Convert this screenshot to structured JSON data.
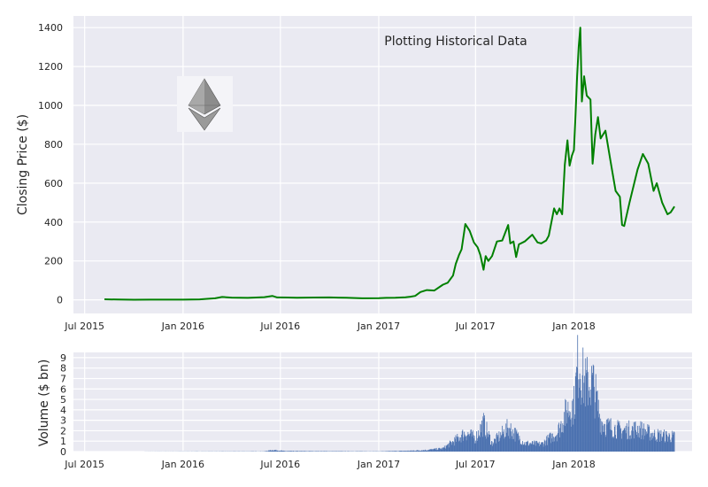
{
  "chart_data": [
    {
      "type": "line",
      "title": "",
      "annotation": "Plotting Historical Data",
      "xlabel": "",
      "ylabel": "Closing Price ($)",
      "x_ticks": [
        "Jul 2015",
        "Jan 2016",
        "Jul 2016",
        "Jan 2017",
        "Jul 2017",
        "Jan 2018"
      ],
      "y_ticks": [
        "0",
        "200",
        "400",
        "600",
        "800",
        "1000",
        "1200",
        "1400"
      ],
      "xlim": [
        "2015-06-10",
        "2018-08-10"
      ],
      "ylim": [
        -70,
        1460
      ],
      "grid": true,
      "logo": "ethereum-logo",
      "series": [
        {
          "color": "#008000",
          "points": [
            [
              "2015-08-07",
              2.8
            ],
            [
              "2015-09-01",
              1.4
            ],
            [
              "2015-10-01",
              0.7
            ],
            [
              "2015-11-01",
              0.9
            ],
            [
              "2015-12-01",
              0.9
            ],
            [
              "2016-01-01",
              1.0
            ],
            [
              "2016-02-01",
              2.5
            ],
            [
              "2016-02-15",
              5.2
            ],
            [
              "2016-03-01",
              8.0
            ],
            [
              "2016-03-14",
              14.5
            ],
            [
              "2016-04-01",
              11.5
            ],
            [
              "2016-05-01",
              10.0
            ],
            [
              "2016-06-01",
              14.0
            ],
            [
              "2016-06-16",
              20.0
            ],
            [
              "2016-06-25",
              12.5
            ],
            [
              "2016-07-15",
              12.0
            ],
            [
              "2016-08-01",
              10.5
            ],
            [
              "2016-09-01",
              12.0
            ],
            [
              "2016-10-01",
              12.5
            ],
            [
              "2016-11-01",
              10.5
            ],
            [
              "2016-12-01",
              8.0
            ],
            [
              "2017-01-01",
              8.2
            ],
            [
              "2017-01-15",
              10.0
            ],
            [
              "2017-02-01",
              10.8
            ],
            [
              "2017-02-20",
              13.0
            ],
            [
              "2017-03-01",
              16.0
            ],
            [
              "2017-03-10",
              20.0
            ],
            [
              "2017-03-20",
              40.0
            ],
            [
              "2017-04-01",
              50.0
            ],
            [
              "2017-04-15",
              48.0
            ],
            [
              "2017-05-01",
              78.0
            ],
            [
              "2017-05-10",
              88.0
            ],
            [
              "2017-05-20",
              125.0
            ],
            [
              "2017-05-25",
              185.0
            ],
            [
              "2017-05-31",
              230.0
            ],
            [
              "2017-06-05",
              260.0
            ],
            [
              "2017-06-12",
              390.0
            ],
            [
              "2017-06-20",
              355.0
            ],
            [
              "2017-06-28",
              295.0
            ],
            [
              "2017-07-05",
              270.0
            ],
            [
              "2017-07-10",
              230.0
            ],
            [
              "2017-07-16",
              155.0
            ],
            [
              "2017-07-20",
              225.0
            ],
            [
              "2017-07-25",
              200.0
            ],
            [
              "2017-08-01",
              225.0
            ],
            [
              "2017-08-10",
              300.0
            ],
            [
              "2017-08-20",
              305.0
            ],
            [
              "2017-08-31",
              385.0
            ],
            [
              "2017-09-04",
              290.0
            ],
            [
              "2017-09-10",
              300.0
            ],
            [
              "2017-09-15",
              220.0
            ],
            [
              "2017-09-20",
              285.0
            ],
            [
              "2017-10-01",
              300.0
            ],
            [
              "2017-10-15",
              335.0
            ],
            [
              "2017-10-25",
              295.0
            ],
            [
              "2017-11-01",
              290.0
            ],
            [
              "2017-11-10",
              305.0
            ],
            [
              "2017-11-15",
              330.0
            ],
            [
              "2017-11-25",
              470.0
            ],
            [
              "2017-11-30",
              440.0
            ],
            [
              "2017-12-05",
              470.0
            ],
            [
              "2017-12-10",
              440.0
            ],
            [
              "2017-12-15",
              695.0
            ],
            [
              "2017-12-20",
              820.0
            ],
            [
              "2017-12-24",
              690.0
            ],
            [
              "2017-12-28",
              740.0
            ],
            [
              "2018-01-01",
              770.0
            ],
            [
              "2018-01-04",
              950.0
            ],
            [
              "2018-01-07",
              1150.0
            ],
            [
              "2018-01-10",
              1300.0
            ],
            [
              "2018-01-13",
              1400.0
            ],
            [
              "2018-01-16",
              1020.0
            ],
            [
              "2018-01-20",
              1150.0
            ],
            [
              "2018-01-25",
              1050.0
            ],
            [
              "2018-02-01",
              1030.0
            ],
            [
              "2018-02-05",
              700.0
            ],
            [
              "2018-02-10",
              850.0
            ],
            [
              "2018-02-15",
              940.0
            ],
            [
              "2018-02-20",
              830.0
            ],
            [
              "2018-03-01",
              870.0
            ],
            [
              "2018-03-10",
              720.0
            ],
            [
              "2018-03-20",
              560.0
            ],
            [
              "2018-03-28",
              530.0
            ],
            [
              "2018-04-01",
              385.0
            ],
            [
              "2018-04-05",
              380.0
            ],
            [
              "2018-04-15",
              500.0
            ],
            [
              "2018-04-30",
              670.0
            ],
            [
              "2018-05-10",
              750.0
            ],
            [
              "2018-05-20",
              700.0
            ],
            [
              "2018-05-30",
              560.0
            ],
            [
              "2018-06-05",
              600.0
            ],
            [
              "2018-06-15",
              500.0
            ],
            [
              "2018-06-25",
              440.0
            ],
            [
              "2018-07-01",
              450.0
            ],
            [
              "2018-07-08",
              480.0
            ]
          ]
        }
      ]
    },
    {
      "type": "bar",
      "title": "",
      "xlabel": "",
      "ylabel": "Volume ($ bn)",
      "x_ticks": [
        "Jul 2015",
        "Jan 2016",
        "Jul 2016",
        "Jan 2017",
        "Jul 2017",
        "Jan 2018"
      ],
      "y_ticks": [
        "0",
        "1",
        "2",
        "3",
        "4",
        "5",
        "6",
        "7",
        "8",
        "9"
      ],
      "xlim": [
        "2015-06-10",
        "2018-08-10"
      ],
      "ylim": [
        0,
        9.5
      ],
      "grid": true,
      "bar_color": "#4c72b0",
      "volume_profile": [
        [
          "2015-08-07",
          0.0
        ],
        [
          "2016-06-01",
          0.02
        ],
        [
          "2016-06-17",
          0.15
        ],
        [
          "2016-07-10",
          0.05
        ],
        [
          "2017-01-01",
          0.02
        ],
        [
          "2017-03-01",
          0.08
        ],
        [
          "2017-04-01",
          0.15
        ],
        [
          "2017-05-01",
          0.3
        ],
        [
          "2017-05-25",
          1.1
        ],
        [
          "2017-06-12",
          1.8
        ],
        [
          "2017-07-01",
          1.3
        ],
        [
          "2017-07-16",
          2.7
        ],
        [
          "2017-08-01",
          0.8
        ],
        [
          "2017-09-01",
          2.3
        ],
        [
          "2017-10-01",
          0.8
        ],
        [
          "2017-11-01",
          0.7
        ],
        [
          "2017-12-01",
          1.8
        ],
        [
          "2017-12-20",
          4.0
        ],
        [
          "2018-01-01",
          4.5
        ],
        [
          "2018-01-10",
          9.0
        ],
        [
          "2018-01-20",
          6.5
        ],
        [
          "2018-02-06",
          6.5
        ],
        [
          "2018-02-20",
          3.0
        ],
        [
          "2018-03-01",
          2.5
        ],
        [
          "2018-04-01",
          2.0
        ],
        [
          "2018-05-01",
          2.2
        ],
        [
          "2018-06-01",
          1.6
        ],
        [
          "2018-07-08",
          1.4
        ]
      ]
    }
  ]
}
